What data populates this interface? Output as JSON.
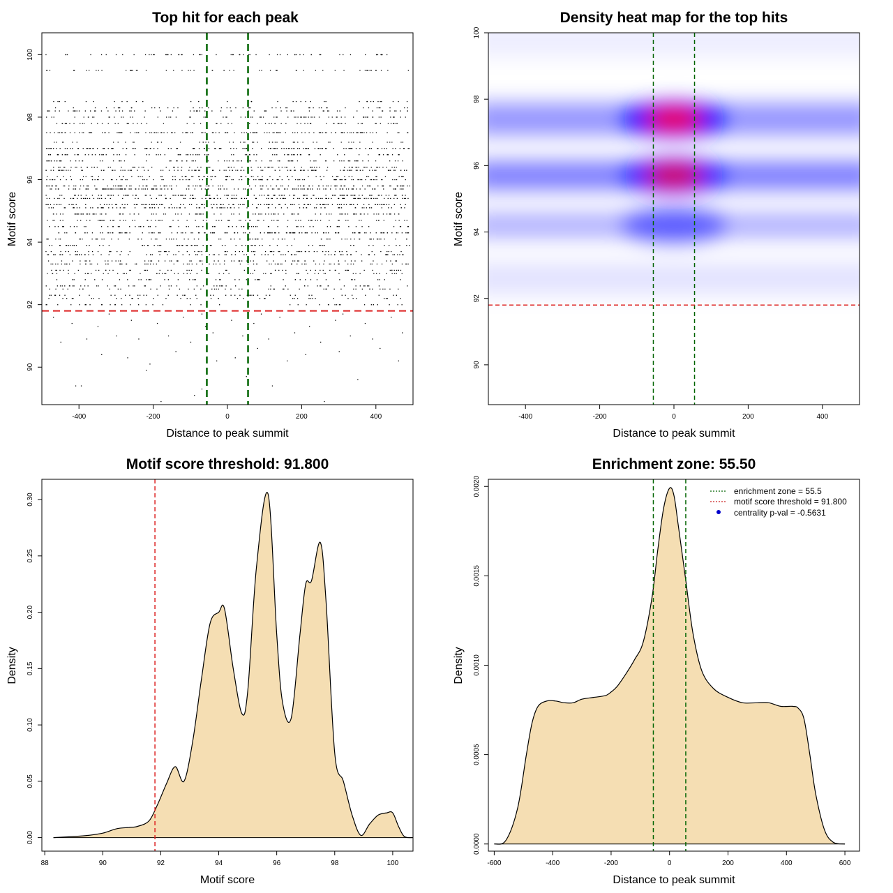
{
  "chart_data": [
    {
      "id": "scatter",
      "type": "scatter",
      "title": "Top hit for each peak",
      "xlabel": "Distance to peak summit",
      "ylabel": "Motif score",
      "xlim": [
        -500,
        500
      ],
      "ylim": [
        88.8,
        100.7
      ],
      "xticks": [
        -400,
        -200,
        0,
        200,
        400
      ],
      "yticks": [
        90,
        92,
        94,
        96,
        98,
        100
      ],
      "point_rows": [
        {
          "y": 100.0,
          "density": 0.45
        },
        {
          "y": 99.5,
          "density": 0.4
        },
        {
          "y": 98.5,
          "density": 0.25
        },
        {
          "y": 98.3,
          "density": 0.35
        },
        {
          "y": 98.2,
          "density": 0.45
        },
        {
          "y": 98.0,
          "density": 0.55
        },
        {
          "y": 97.8,
          "density": 0.5
        },
        {
          "y": 97.5,
          "density": 1.0
        },
        {
          "y": 97.2,
          "density": 0.45
        },
        {
          "y": 97.0,
          "density": 0.95
        },
        {
          "y": 96.8,
          "density": 0.6
        },
        {
          "y": 96.6,
          "density": 0.65
        },
        {
          "y": 96.4,
          "density": 0.6
        },
        {
          "y": 96.3,
          "density": 0.8
        },
        {
          "y": 96.1,
          "density": 0.55
        },
        {
          "y": 96.0,
          "density": 0.7
        },
        {
          "y": 95.8,
          "density": 0.85
        },
        {
          "y": 95.7,
          "density": 0.95
        },
        {
          "y": 95.5,
          "density": 0.85
        },
        {
          "y": 95.4,
          "density": 0.8
        },
        {
          "y": 95.2,
          "density": 0.9
        },
        {
          "y": 95.1,
          "density": 0.7
        },
        {
          "y": 94.9,
          "density": 0.75
        },
        {
          "y": 94.7,
          "density": 0.6
        },
        {
          "y": 94.5,
          "density": 0.55
        },
        {
          "y": 94.3,
          "density": 0.9
        },
        {
          "y": 94.1,
          "density": 0.6
        },
        {
          "y": 93.9,
          "density": 0.55
        },
        {
          "y": 93.7,
          "density": 0.5
        },
        {
          "y": 93.6,
          "density": 0.65
        },
        {
          "y": 93.4,
          "density": 0.45
        },
        {
          "y": 93.3,
          "density": 0.6
        },
        {
          "y": 93.1,
          "density": 0.4
        },
        {
          "y": 93.0,
          "density": 0.45
        },
        {
          "y": 92.8,
          "density": 0.35
        },
        {
          "y": 92.6,
          "density": 0.4
        },
        {
          "y": 92.5,
          "density": 0.35
        },
        {
          "y": 92.3,
          "density": 0.35
        },
        {
          "y": 92.2,
          "density": 0.3
        },
        {
          "y": 92.0,
          "density": 0.3
        }
      ],
      "sparse_points": [
        [
          -410,
          89.4
        ],
        [
          -395,
          89.4
        ],
        [
          -180,
          88.9
        ],
        [
          -220,
          89.9
        ],
        [
          -90,
          89.1
        ],
        [
          -70,
          89.3
        ],
        [
          50,
          89.7
        ],
        [
          120,
          89.4
        ],
        [
          260,
          88.9
        ],
        [
          350,
          89.6
        ],
        [
          -340,
          90.4
        ],
        [
          -270,
          90.3
        ],
        [
          -210,
          90.1
        ],
        [
          -140,
          90.5
        ],
        [
          -30,
          90.2
        ],
        [
          20,
          90.3
        ],
        [
          80,
          90.6
        ],
        [
          160,
          90.2
        ],
        [
          210,
          90.4
        ],
        [
          300,
          90.5
        ],
        [
          410,
          90.6
        ],
        [
          460,
          90.2
        ],
        [
          -450,
          90.8
        ],
        [
          -380,
          90.9
        ],
        [
          -300,
          91.0
        ],
        [
          -240,
          90.9
        ],
        [
          -160,
          91.0
        ],
        [
          -100,
          90.8
        ],
        [
          -40,
          91.1
        ],
        [
          40,
          91.0
        ],
        [
          110,
          90.9
        ],
        [
          180,
          91.1
        ],
        [
          250,
          90.8
        ],
        [
          330,
          91.0
        ],
        [
          390,
          90.9
        ],
        [
          470,
          91.1
        ],
        [
          -420,
          91.4
        ],
        [
          -350,
          91.3
        ],
        [
          -260,
          91.5
        ],
        [
          -190,
          91.4
        ],
        [
          -120,
          91.6
        ],
        [
          -60,
          91.3
        ],
        [
          10,
          91.5
        ],
        [
          70,
          91.4
        ],
        [
          140,
          91.6
        ],
        [
          220,
          91.3
        ],
        [
          290,
          91.5
        ],
        [
          370,
          91.4
        ],
        [
          440,
          91.6
        ],
        [
          -470,
          91.6
        ],
        [
          -320,
          91.7
        ],
        [
          -70,
          91.7
        ],
        [
          90,
          91.7
        ],
        [
          310,
          91.7
        ]
      ],
      "threshold": 91.8,
      "zone_lines": [
        -55.5,
        55.5
      ]
    },
    {
      "id": "heatmap",
      "type": "heatmap",
      "title": "Density heat map for the top hits",
      "xlabel": "Distance to peak summit",
      "ylabel": "Motif score",
      "xlim": [
        -500,
        500
      ],
      "ylim": [
        88.8,
        100.0
      ],
      "xticks": [
        -400,
        -200,
        0,
        200,
        400
      ],
      "yticks": [
        90,
        92,
        94,
        96,
        98,
        100
      ],
      "bands": [
        {
          "y": 97.4,
          "sigma_y": 0.45,
          "level": 0.75
        },
        {
          "y": 95.7,
          "sigma_y": 0.4,
          "level": 0.9
        },
        {
          "y": 94.2,
          "sigma_y": 0.35,
          "level": 0.55
        },
        {
          "y": 92.6,
          "sigma_y": 0.45,
          "level": 0.2
        },
        {
          "y": 99.5,
          "sigma_y": 0.25,
          "level": 0.1
        },
        {
          "y": 100.0,
          "sigma_y": 0.25,
          "level": 0.12
        }
      ],
      "hotspots": [
        {
          "x": 0,
          "y": 97.4,
          "level": 1.0
        },
        {
          "x": 0,
          "y": 95.7,
          "level": 0.85
        },
        {
          "x": 0,
          "y": 94.2,
          "level": 0.55
        }
      ],
      "threshold": 91.8,
      "zone_lines": [
        -55.5,
        55.5
      ]
    },
    {
      "id": "score_density",
      "type": "area",
      "title": "Motif score threshold: 91.800",
      "xlabel": "Motif score",
      "ylabel": "Density",
      "xlim": [
        87.9,
        100.7
      ],
      "ylim": [
        -0.012,
        0.318
      ],
      "xticks": [
        88,
        90,
        92,
        94,
        96,
        98,
        100
      ],
      "yticks": [
        0.0,
        0.05,
        0.1,
        0.15,
        0.2,
        0.25,
        0.3
      ],
      "ytick_labels": [
        "0.00",
        "0.05",
        "0.10",
        "0.15",
        "0.20",
        "0.25",
        "0.30"
      ],
      "x": [
        88.3,
        89.0,
        89.5,
        90.0,
        90.5,
        90.9,
        91.2,
        91.6,
        91.9,
        92.2,
        92.5,
        92.8,
        93.1,
        93.4,
        93.7,
        94.0,
        94.2,
        94.5,
        94.8,
        95.0,
        95.3,
        95.7,
        96.0,
        96.2,
        96.5,
        96.8,
        97.0,
        97.2,
        97.5,
        97.7,
        98.0,
        98.3,
        98.6,
        98.9,
        99.2,
        99.5,
        99.8,
        100.0,
        100.2,
        100.4,
        100.7
      ],
      "y": [
        0.0,
        0.001,
        0.002,
        0.004,
        0.008,
        0.009,
        0.01,
        0.015,
        0.03,
        0.048,
        0.063,
        0.05,
        0.085,
        0.14,
        0.19,
        0.2,
        0.203,
        0.15,
        0.11,
        0.13,
        0.24,
        0.305,
        0.18,
        0.12,
        0.106,
        0.18,
        0.225,
        0.228,
        0.262,
        0.21,
        0.075,
        0.05,
        0.02,
        0.002,
        0.012,
        0.02,
        0.022,
        0.022,
        0.01,
        0.001,
        0.0
      ],
      "threshold": 91.8
    },
    {
      "id": "distance_density",
      "type": "area",
      "title": "Enrichment zone: 55.50",
      "xlabel": "Distance to peak summit",
      "ylabel": "Density",
      "xlim": [
        -620,
        650
      ],
      "ylim": [
        -4e-05,
        0.00204
      ],
      "xticks": [
        -600,
        -400,
        -200,
        0,
        200,
        400,
        600
      ],
      "yticks": [
        0.0,
        0.0005,
        0.001,
        0.0015,
        0.002
      ],
      "ytick_labels": [
        "0.0000",
        "0.0005",
        "0.0010",
        "0.0015",
        "0.0020"
      ],
      "x": [
        -600,
        -560,
        -520,
        -490,
        -470,
        -450,
        -420,
        -390,
        -360,
        -330,
        -300,
        -260,
        -220,
        -200,
        -180,
        -150,
        -120,
        -90,
        -60,
        -40,
        -20,
        0,
        15,
        30,
        55,
        80,
        110,
        150,
        200,
        250,
        300,
        340,
        380,
        420,
        440,
        460,
        480,
        500,
        530,
        560,
        600
      ],
      "y": [
        0.0,
        2e-05,
        0.0002,
        0.0005,
        0.00068,
        0.00077,
        0.0008,
        0.0008,
        0.00079,
        0.00079,
        0.00081,
        0.00082,
        0.00083,
        0.00085,
        0.00088,
        0.00095,
        0.00103,
        0.00113,
        0.00138,
        0.00165,
        0.00188,
        0.00199,
        0.00195,
        0.00178,
        0.00148,
        0.00118,
        0.00097,
        0.00087,
        0.00082,
        0.00079,
        0.00079,
        0.00079,
        0.00077,
        0.00077,
        0.00076,
        0.0007,
        0.0005,
        0.00028,
        8e-05,
        1e-05,
        0.0
      ],
      "zone_lines": [
        -55.5,
        55.5
      ],
      "legend": [
        {
          "label": "enrichment zone = 55.5",
          "style": "dotted",
          "color": "#006400"
        },
        {
          "label": "motif score threshold = 91.800",
          "style": "dotted",
          "color": "#cc2222"
        },
        {
          "label": "centrality p-val = -0.5631",
          "style": "point",
          "color": "#0000cc"
        }
      ]
    }
  ],
  "colors": {
    "fill": "#f5deb3",
    "threshold": "#dd2222",
    "zone": "#006400",
    "heat_low": "#0000ff",
    "heat_high": "#ff0000",
    "point": "#000000"
  }
}
